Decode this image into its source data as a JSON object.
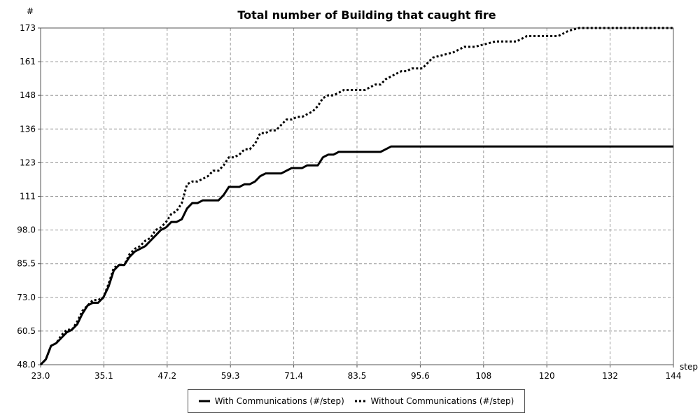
{
  "chart_data": {
    "type": "line",
    "title": "Total number of Building that caught fire",
    "xlabel": "step",
    "ylabel": "#",
    "xlim": [
      23.0,
      144
    ],
    "ylim": [
      48.0,
      173
    ],
    "x_ticks": [
      "23.0",
      "35.1",
      "47.2",
      "59.3",
      "71.4",
      "83.5",
      "95.6",
      "108",
      "120",
      "132",
      "144"
    ],
    "y_ticks": [
      "48.0",
      "60.5",
      "73.0",
      "85.5",
      "98.0",
      "111",
      "123",
      "136",
      "148",
      "161",
      "173"
    ],
    "grid": true,
    "legend_position": "bottom",
    "series": [
      {
        "name": "With Communications (#/step)",
        "style": "solid",
        "x": [
          23,
          24,
          25,
          26,
          27,
          28,
          29,
          30,
          31,
          32,
          33,
          34,
          35,
          36,
          37,
          38,
          39,
          40,
          41,
          42,
          43,
          44,
          45,
          46,
          47,
          48,
          49,
          50,
          51,
          52,
          53,
          54,
          55,
          56,
          57,
          58,
          59,
          60,
          61,
          62,
          63,
          64,
          65,
          66,
          67,
          68,
          69,
          70,
          71,
          72,
          73,
          74,
          75,
          76,
          77,
          78,
          79,
          80,
          81,
          82,
          83,
          84,
          85,
          86,
          87,
          88,
          89,
          90,
          91,
          92,
          93,
          94,
          95,
          96,
          100,
          110,
          120,
          130,
          144
        ],
        "values": [
          48,
          50,
          55,
          56,
          58,
          60,
          61,
          63,
          67,
          70,
          71,
          71,
          73,
          77,
          83,
          85,
          85,
          88,
          90,
          91,
          92,
          94,
          96,
          98,
          99,
          101,
          101,
          102,
          106,
          108,
          108,
          109,
          109,
          109,
          109,
          111,
          114,
          114,
          114,
          115,
          115,
          116,
          118,
          119,
          119,
          119,
          119,
          120,
          121,
          121,
          121,
          122,
          122,
          122,
          125,
          126,
          126,
          127,
          127,
          127,
          127,
          127,
          127,
          127,
          127,
          127,
          128,
          129,
          129,
          129,
          129,
          129,
          129,
          129,
          129,
          129,
          129,
          129,
          129
        ]
      },
      {
        "name": "Without Communications (#/step)",
        "style": "dotted",
        "x": [
          23,
          24,
          25,
          26,
          27,
          28,
          29,
          30,
          31,
          32,
          33,
          34,
          35,
          36,
          37,
          38,
          39,
          40,
          41,
          42,
          43,
          44,
          45,
          46,
          47,
          48,
          49,
          50,
          51,
          52,
          53,
          54,
          55,
          56,
          57,
          58,
          59,
          60,
          61,
          62,
          63,
          64,
          65,
          66,
          67,
          68,
          69,
          70,
          71,
          72,
          73,
          74,
          75,
          76,
          77,
          78,
          79,
          80,
          81,
          82,
          83,
          84,
          85,
          86,
          87,
          88,
          89,
          90,
          91,
          92,
          93,
          94,
          95,
          96,
          98,
          100,
          102,
          104,
          106,
          108,
          110,
          112,
          114,
          116,
          118,
          120,
          122,
          124,
          126,
          130,
          135,
          140,
          144
        ],
        "values": [
          48,
          50,
          55,
          56,
          59,
          61,
          61,
          64,
          68,
          70,
          72,
          72,
          73,
          78,
          84,
          85,
          85,
          89,
          91,
          92,
          94,
          95,
          98,
          99,
          101,
          104,
          105,
          108,
          115,
          116,
          116,
          117,
          118,
          120,
          120,
          122,
          125,
          125,
          126,
          128,
          128,
          130,
          134,
          134,
          135,
          135,
          137,
          139,
          139,
          140,
          140,
          141,
          142,
          144,
          147,
          148,
          148,
          149,
          150,
          150,
          150,
          150,
          150,
          151,
          152,
          152,
          154,
          155,
          156,
          157,
          157,
          158,
          158,
          158,
          162,
          163,
          164,
          166,
          166,
          167,
          168,
          168,
          168,
          170,
          170,
          170,
          170,
          172,
          173,
          173,
          173,
          173,
          173
        ]
      }
    ]
  }
}
